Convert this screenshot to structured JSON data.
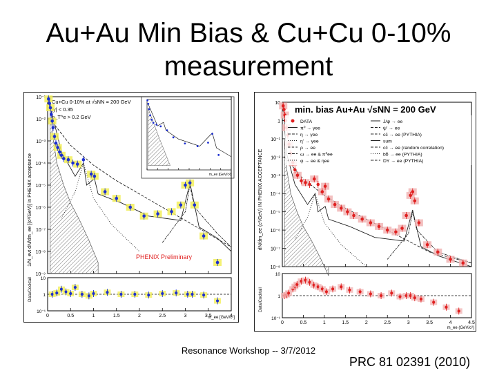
{
  "slide": {
    "title_line1": "Au+Au Min Bias & Cu+Cu 0-10%",
    "title_line2": "measurement",
    "footer": "Resonance Workshop -- 3/7/2012",
    "citation": "PRC 81 02391 (2010)"
  },
  "colors": {
    "data_blue": "#1c2fd0",
    "data_red": "#e02020",
    "syst_yellow": "#f2ef5a",
    "syst_pink": "#f1b5b5"
  },
  "chart_data": [
    {
      "type": "scatter",
      "panel": "Cu+Cu 0-10%",
      "legend_text": [
        "Cu+Cu 0-10% at √sNN = 200 GeV",
        "|y| < 0.35",
        "p_T^e > 0.2 GeV"
      ],
      "ylabel": "1/N_evt dN/dm_ee [(c²/GeV)] in PHENIX acceptance",
      "xlabel": "m_ee [GeV/c²]",
      "annotation": "PHENIX Preliminary",
      "ratio_ylabel": "Data/Cocktail",
      "xlim": [
        0,
        4
      ],
      "ylog": true,
      "ylim_exp": [
        -9,
        -1
      ],
      "x_ticks": [
        "0",
        "0.5",
        "1",
        "1.5",
        "2",
        "2.5",
        "3",
        "3.5",
        "4"
      ],
      "y_ticks": [
        "10⁻¹",
        "10⁻²",
        "10⁻³",
        "10⁻⁴",
        "10⁻⁵",
        "10⁻⁶",
        "10⁻⁷",
        "10⁻⁸",
        "10⁻⁹"
      ],
      "ratio_ticks": [
        "10",
        "1",
        "10⁻¹"
      ],
      "data": {
        "x": [
          0.02,
          0.04,
          0.06,
          0.08,
          0.1,
          0.12,
          0.15,
          0.18,
          0.22,
          0.26,
          0.3,
          0.35,
          0.45,
          0.55,
          0.65,
          0.78,
          0.95,
          1.02,
          1.25,
          1.5,
          1.8,
          2.1,
          2.4,
          2.7,
          2.9,
          3.0,
          3.1,
          3.2,
          3.4,
          3.7
        ],
        "logy": [
          -1.1,
          -1.3,
          -1.5,
          -1.8,
          -2.1,
          -2.4,
          -2.8,
          -3.1,
          -3.3,
          -3.5,
          -3.65,
          -3.8,
          -3.85,
          -4.0,
          -4.05,
          -3.85,
          -4.5,
          -4.6,
          -5.3,
          -5.6,
          -6.0,
          -6.4,
          -6.3,
          -6.2,
          -5.9,
          -5.0,
          -4.9,
          -5.9,
          -7.3,
          -8.5
        ]
      },
      "ratio": {
        "x": [
          0.1,
          0.2,
          0.3,
          0.4,
          0.5,
          0.6,
          0.75,
          0.9,
          1.0,
          1.3,
          1.6,
          1.9,
          2.2,
          2.5,
          2.8,
          3.05,
          3.15,
          3.4,
          3.7
        ],
        "r": [
          1.0,
          1.2,
          2.0,
          1.4,
          1.1,
          2.6,
          1.0,
          0.8,
          1.1,
          1.3,
          1.0,
          1.0,
          0.9,
          1.1,
          1.2,
          1.0,
          1.0,
          0.9,
          0.4
        ]
      },
      "inset": {
        "xlim": [
          0,
          4
        ],
        "xlabel": "m_ee [GeV/c²]"
      }
    },
    {
      "type": "scatter",
      "panel": "min. bias Au+Au",
      "title": "min. bias Au+Au √sNN = 200 GeV",
      "ylabel": "dN/dm_ee (c²/GeV) IN PHENIX ACCEPTANCE",
      "xlabel": "m_ee (GeV/c²)",
      "ratio_ylabel": "Data/Cocktail",
      "xlim": [
        0,
        4.5
      ],
      "ylog": true,
      "ylim_exp": [
        -8,
        1
      ],
      "x_ticks": [
        "0",
        "0.5",
        "1",
        "1.5",
        "2",
        "2.5",
        "3",
        "3.5",
        "4",
        "4.5"
      ],
      "y_ticks": [
        "10",
        "1",
        "10⁻¹",
        "10⁻²",
        "10⁻³",
        "10⁻⁴",
        "10⁻⁵",
        "10⁻⁶",
        "10⁻⁷",
        "10⁻⁸"
      ],
      "ratio_ticks": [
        "10",
        "1",
        "10⁻¹"
      ],
      "legend": [
        {
          "label": "DATA",
          "mark": "dot"
        },
        {
          "label": "π⁰ → γee",
          "mark": "solid"
        },
        {
          "label": "η → γee",
          "mark": "dashed"
        },
        {
          "label": "η' → γee",
          "mark": "dotted"
        },
        {
          "label": "ρ → ee",
          "mark": "dashdot"
        },
        {
          "label": "ω → ee & π⁰ee",
          "mark": "dashed"
        },
        {
          "label": "φ → ee & ηee",
          "mark": "dotted"
        },
        {
          "label": "J/ψ → ee",
          "mark": "solid"
        },
        {
          "label": "ψ' → ee",
          "mark": "dashed"
        },
        {
          "label": "cc̄ → ee (PYTHIA)",
          "mark": "dashdot"
        },
        {
          "label": "sum",
          "mark": "solid"
        },
        {
          "label": "cc̄ → ee (random correlation)",
          "mark": "dashed"
        },
        {
          "label": "bb̄ → ee (PYTHIA)",
          "mark": "dotted"
        },
        {
          "label": "DY → ee (PYTHIA)",
          "mark": "dashdot"
        }
      ],
      "data": {
        "x": [
          0.02,
          0.04,
          0.06,
          0.08,
          0.1,
          0.13,
          0.16,
          0.2,
          0.25,
          0.3,
          0.36,
          0.45,
          0.55,
          0.65,
          0.76,
          0.85,
          0.95,
          1.02,
          1.1,
          1.25,
          1.4,
          1.55,
          1.7,
          1.9,
          2.1,
          2.3,
          2.5,
          2.7,
          2.85,
          2.95,
          3.05,
          3.1,
          3.15,
          3.25,
          3.45,
          3.7,
          4.0,
          4.3
        ],
        "logy": [
          0.8,
          0.6,
          0.3,
          0.0,
          -0.4,
          -0.8,
          -1.3,
          -1.8,
          -2.3,
          -2.7,
          -3.0,
          -3.3,
          -3.4,
          -3.5,
          -3.2,
          -3.5,
          -3.9,
          -3.6,
          -4.3,
          -4.6,
          -4.8,
          -5.0,
          -5.2,
          -5.4,
          -5.6,
          -5.8,
          -6.0,
          -6.1,
          -5.9,
          -5.2,
          -4.1,
          -3.9,
          -4.4,
          -5.6,
          -6.8,
          -7.2,
          -7.6,
          -7.8
        ]
      },
      "ratio": {
        "x": [
          0.05,
          0.1,
          0.15,
          0.25,
          0.3,
          0.35,
          0.45,
          0.55,
          0.65,
          0.75,
          0.85,
          0.95,
          1.05,
          1.2,
          1.4,
          1.6,
          1.85,
          2.1,
          2.35,
          2.6,
          2.8,
          2.95,
          3.05,
          3.15,
          3.3,
          3.6,
          3.9,
          4.2
        ],
        "r": [
          1.0,
          1.1,
          1.3,
          2.0,
          2.6,
          3.2,
          4.5,
          5.0,
          4.0,
          3.0,
          2.5,
          2.0,
          1.5,
          2.0,
          2.5,
          1.8,
          1.5,
          1.2,
          1.0,
          1.3,
          0.9,
          1.0,
          1.0,
          0.8,
          0.7,
          0.5,
          0.3,
          0.2
        ]
      }
    }
  ]
}
